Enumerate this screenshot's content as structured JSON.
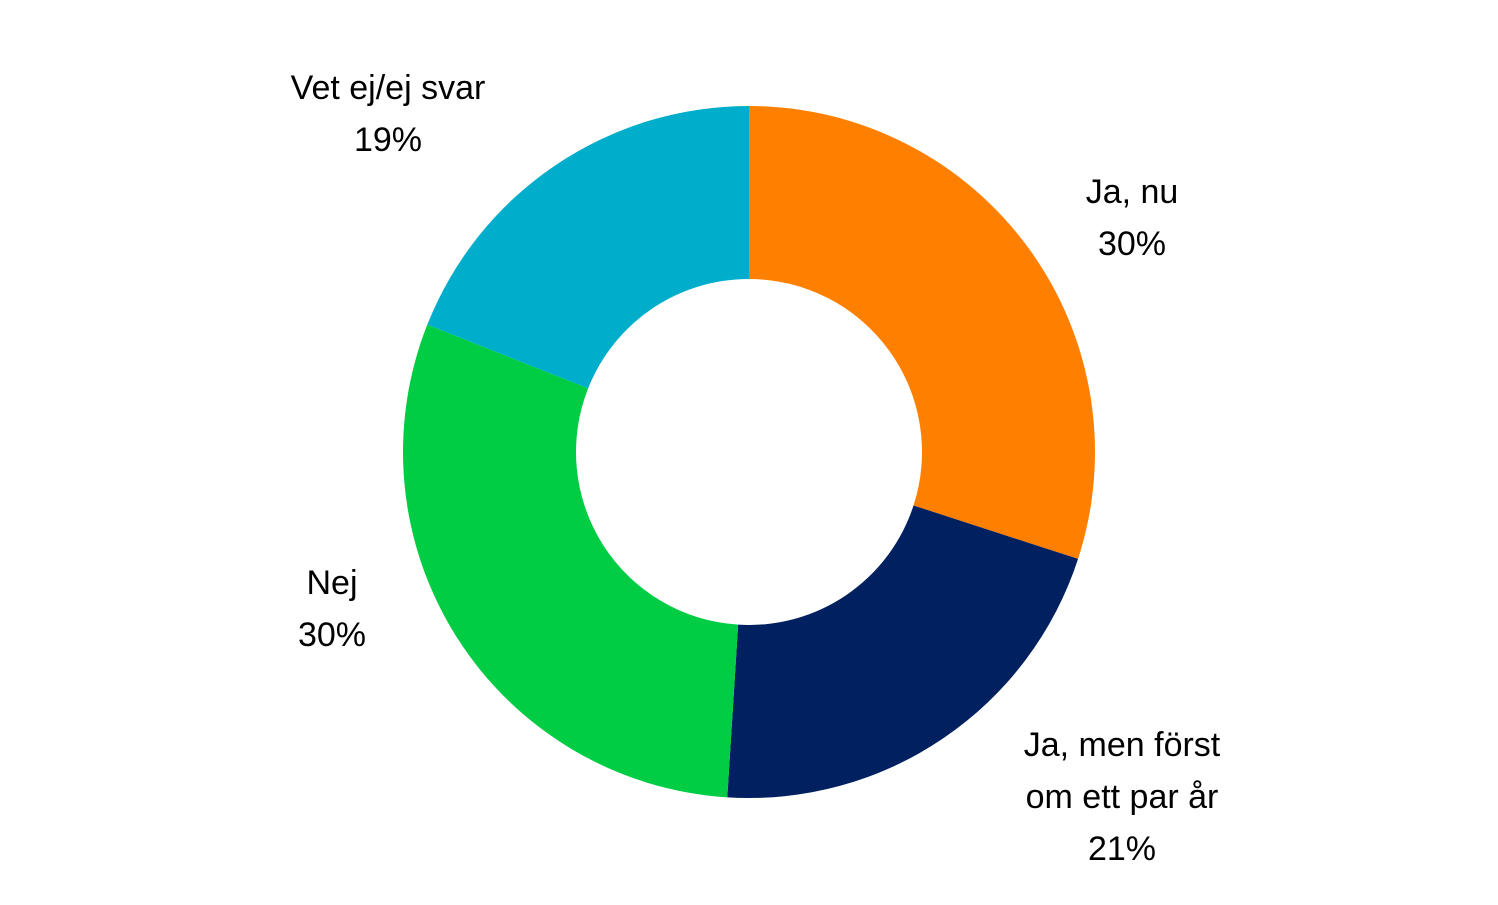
{
  "chart_data": {
    "type": "pie",
    "variant": "donut",
    "start_angle_deg": 0,
    "direction": "clockwise",
    "legend": "none",
    "slices": [
      {
        "label_lines": [
          "Ja, nu"
        ],
        "value": 30,
        "value_label": "30%",
        "color": "#FF8000"
      },
      {
        "label_lines": [
          "Ja, men först",
          "om ett par år"
        ],
        "value": 21,
        "value_label": "21%",
        "color": "#002060"
      },
      {
        "label_lines": [
          "Nej"
        ],
        "value": 30,
        "value_label": "30%",
        "color": "#00CC44"
      },
      {
        "label_lines": [
          "Vet ej/ej svar"
        ],
        "value": 19,
        "value_label": "19%",
        "color": "#00AECC"
      }
    ]
  }
}
